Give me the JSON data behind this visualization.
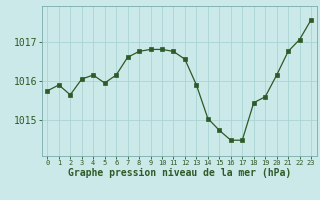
{
  "x": [
    0,
    1,
    2,
    3,
    4,
    5,
    6,
    7,
    8,
    9,
    10,
    11,
    12,
    13,
    14,
    15,
    16,
    17,
    18,
    19,
    20,
    21,
    22,
    23
  ],
  "y": [
    1015.75,
    1015.9,
    1015.65,
    1016.05,
    1016.15,
    1015.95,
    1016.15,
    1016.6,
    1016.75,
    1016.8,
    1016.8,
    1016.75,
    1016.55,
    1015.9,
    1015.05,
    1014.75,
    1014.5,
    1014.5,
    1015.45,
    1015.6,
    1016.15,
    1016.75,
    1017.05,
    1017.55
  ],
  "line_color": "#2d5a27",
  "marker": "s",
  "marker_size": 2.5,
  "bg_color": "#cce9e9",
  "grid_color": "#aad4d4",
  "xlabel": "Graphe pression niveau de la mer (hPa)",
  "xlabel_fontsize": 7,
  "ytick_fontsize": 7,
  "xtick_fontsize": 5,
  "yticks": [
    1015,
    1016,
    1017
  ],
  "ylim": [
    1014.1,
    1017.9
  ],
  "xlim": [
    -0.5,
    23.5
  ]
}
